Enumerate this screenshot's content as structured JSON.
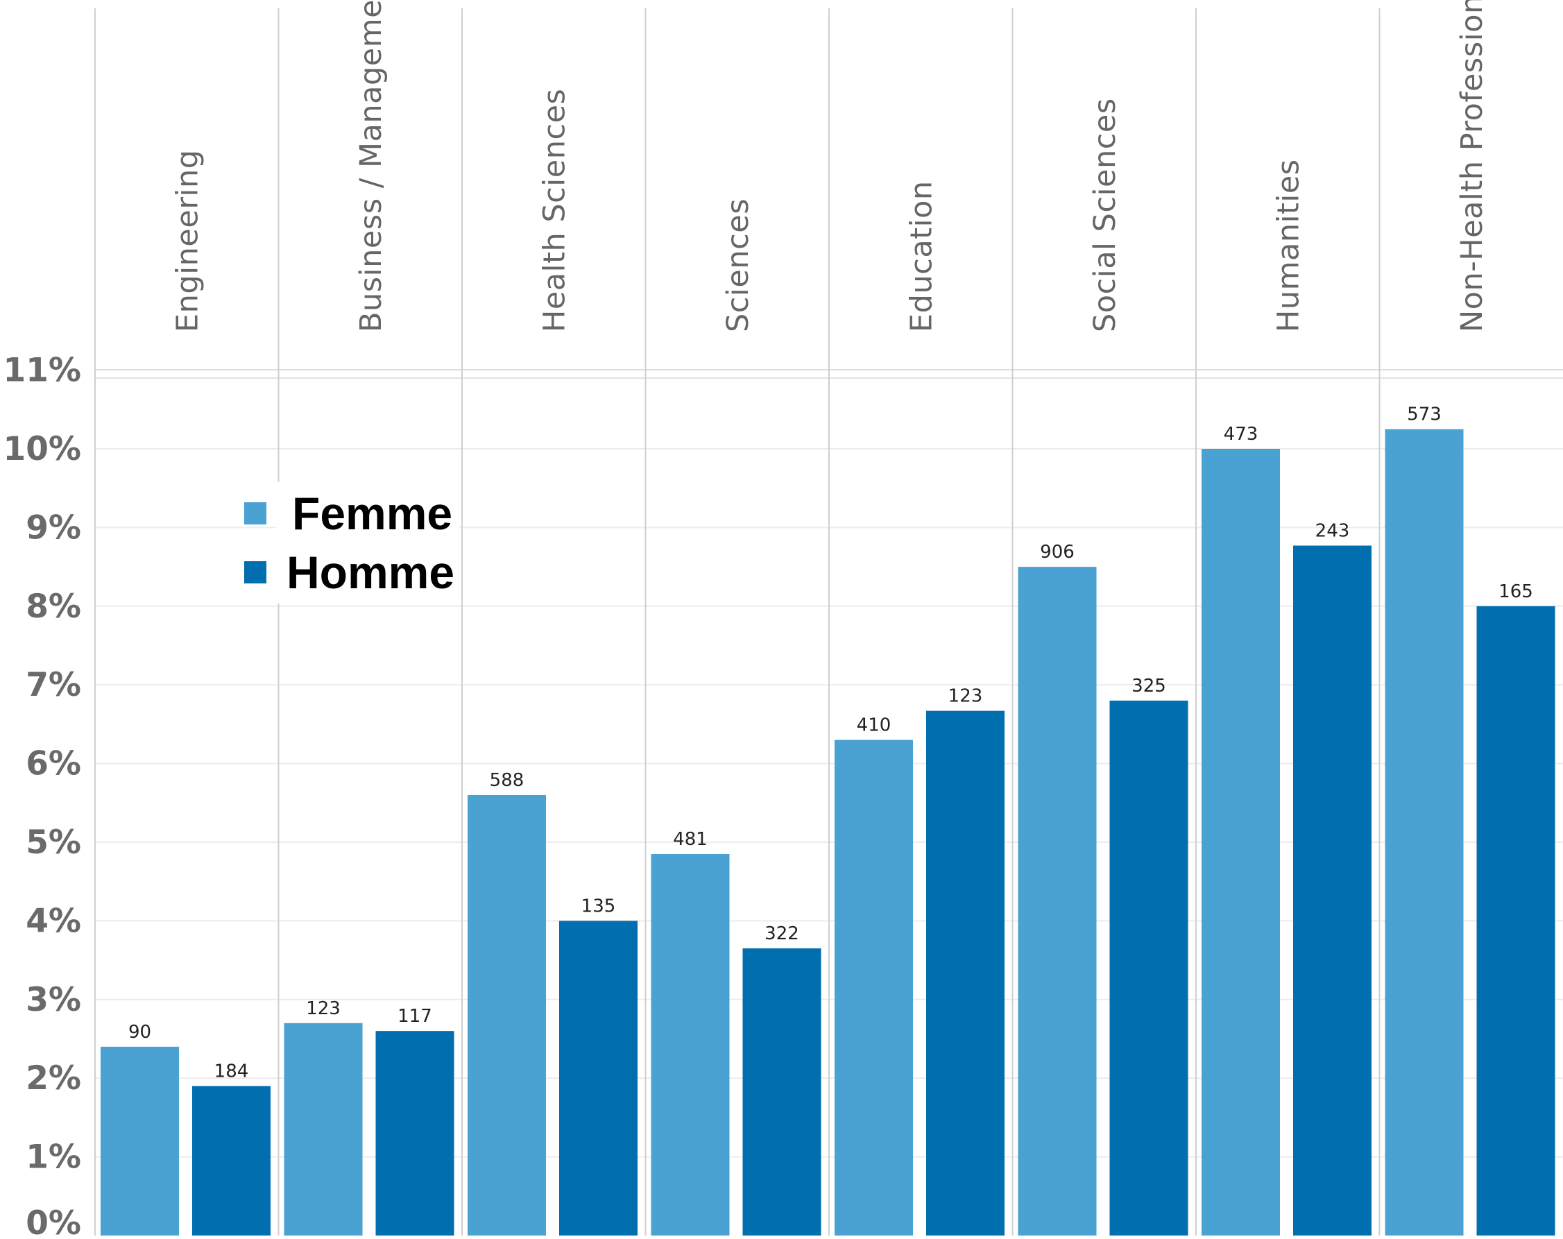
{
  "chart_data": {
    "type": "bar",
    "categories": [
      "Engineering",
      "Business / Management",
      "Health Sciences",
      "Sciences",
      "Education",
      "Social Sciences",
      "Humanities",
      "Non-Health Professions"
    ],
    "series": [
      {
        "name": "Femme",
        "color": "#4aa2d2",
        "values": [
          2.4,
          2.7,
          5.6,
          4.85,
          6.3,
          8.5,
          10.0,
          10.25
        ],
        "data_labels": [
          "90",
          "123",
          "588",
          "481",
          "410",
          "906",
          "473",
          "573"
        ]
      },
      {
        "name": "Homme",
        "color": "#006eaf",
        "values": [
          1.9,
          2.6,
          4.0,
          3.65,
          6.67,
          6.8,
          8.77,
          8.0
        ],
        "data_labels": [
          "184",
          "117",
          "135",
          "322",
          "123",
          "325",
          "243",
          "165"
        ]
      }
    ],
    "y_ticks": [
      "0%",
      "1%",
      "2%",
      "3%",
      "4%",
      "5%",
      "6%",
      "7%",
      "8%",
      "9%",
      "10%",
      "11%"
    ],
    "ylim": [
      0,
      11
    ],
    "grid": true,
    "legend_position": "top-left"
  }
}
